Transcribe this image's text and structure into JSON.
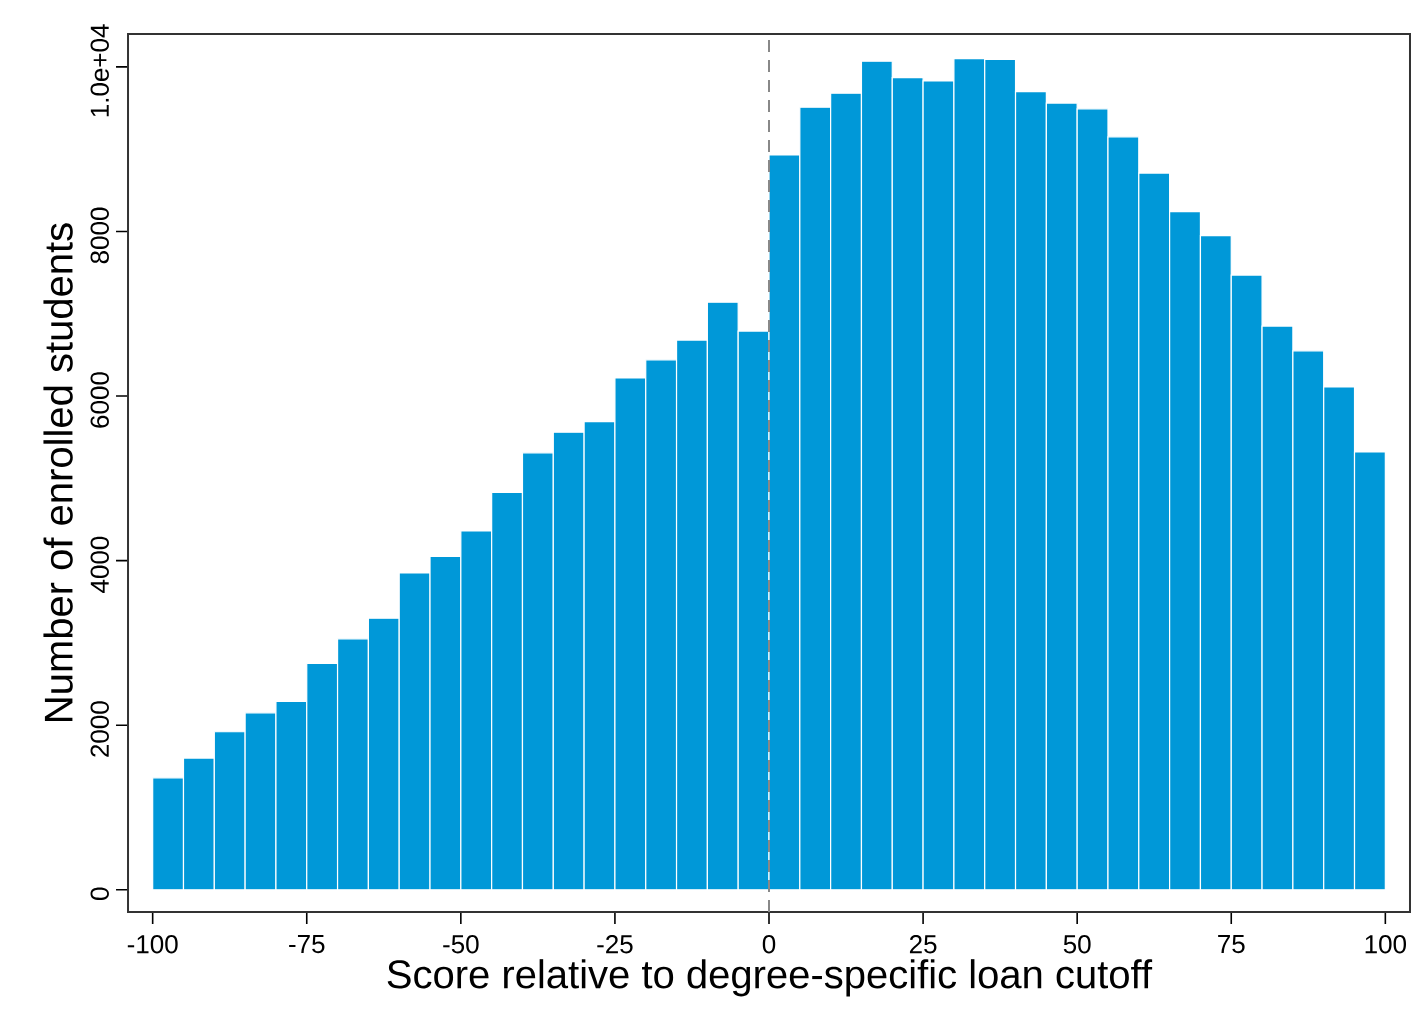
{
  "chart_data": {
    "type": "histogram",
    "xlabel": "Score relative to degree-specific loan cutoff",
    "ylabel": "Number of enrolled students",
    "bins": [
      -100,
      -95,
      -90,
      -85,
      -80,
      -75,
      -70,
      -65,
      -60,
      -55,
      -50,
      -45,
      -40,
      -35,
      -30,
      -25,
      -20,
      -15,
      -10,
      -5,
      0,
      5,
      10,
      15,
      20,
      25,
      30,
      35,
      40,
      45,
      50,
      55,
      60,
      65,
      70,
      75,
      80,
      85,
      90,
      95,
      100
    ],
    "values": [
      1360,
      1600,
      1920,
      2150,
      2290,
      2750,
      3050,
      3300,
      3850,
      4050,
      4360,
      4830,
      5310,
      5560,
      5690,
      6220,
      6440,
      6680,
      7140,
      6790,
      8930,
      9510,
      9680,
      10070,
      9870,
      9830,
      10100,
      10090,
      9700,
      9560,
      9490,
      9150,
      8710,
      8240,
      7950,
      7470,
      6850,
      6550,
      6110,
      5320
    ],
    "color": "#0098d8",
    "xlim": [
      -104,
      104
    ],
    "ylim": [
      -270,
      10400
    ],
    "xticks": [
      -100,
      -75,
      -50,
      -25,
      0,
      25,
      50,
      75,
      100
    ],
    "yticks": [
      0,
      2000,
      4000,
      6000,
      8000,
      {
        "value": 10000,
        "label": "1.0e+04"
      }
    ],
    "ref_lines": [
      {
        "axis": "x",
        "value": 0,
        "color": "#888888",
        "line_style": "dashed"
      }
    ]
  }
}
